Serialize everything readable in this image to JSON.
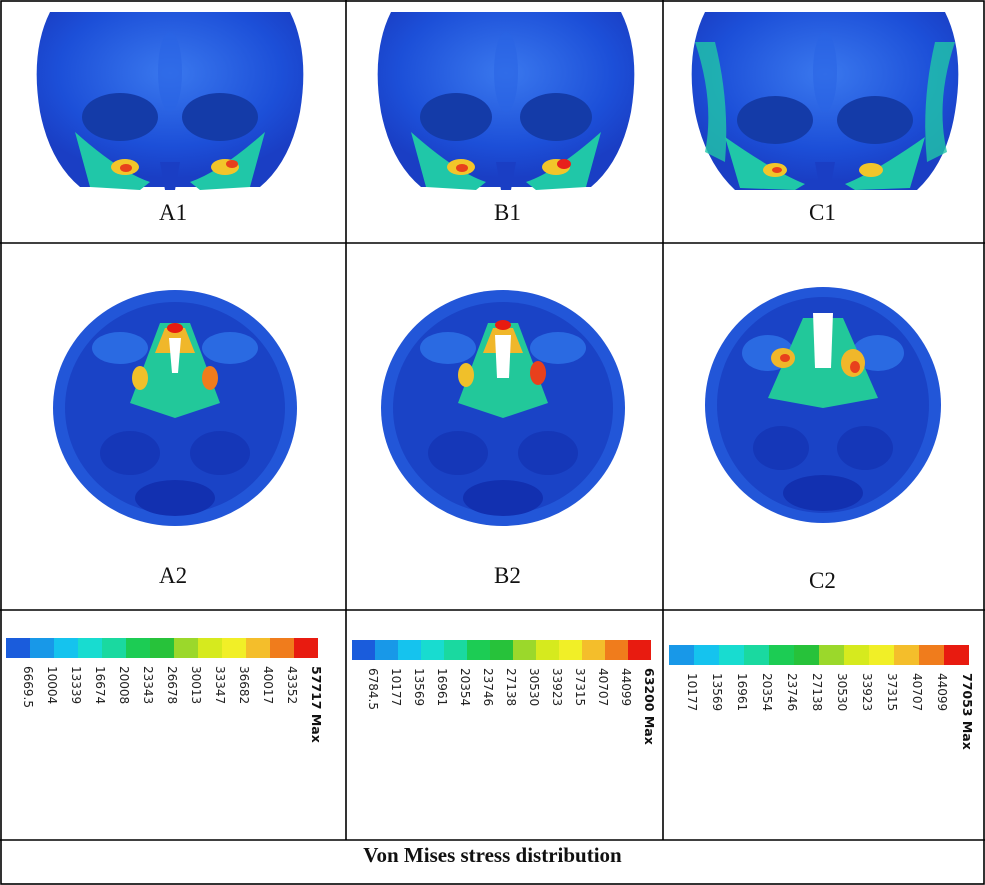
{
  "panels": [
    {
      "id": "A1",
      "label": "A1"
    },
    {
      "id": "B1",
      "label": "B1"
    },
    {
      "id": "C1",
      "label": "C1"
    },
    {
      "id": "A2",
      "label": "A2"
    },
    {
      "id": "B2",
      "label": "B2"
    },
    {
      "id": "C2",
      "label": "C2"
    }
  ],
  "legends": [
    {
      "ticks": [
        "6669.5",
        "10004",
        "13339",
        "16674",
        "20008",
        "23343",
        "26678",
        "30013",
        "33347",
        "36682",
        "40017",
        "43352"
      ],
      "max": "57717 Max"
    },
    {
      "ticks": [
        "6784.5",
        "10177",
        "13569",
        "16961",
        "20354",
        "23746",
        "27138",
        "30530",
        "33923",
        "37315",
        "40707",
        "44099"
      ],
      "max": "63200 Max"
    },
    {
      "ticks": [
        "10177",
        "13569",
        "16961",
        "20354",
        "23746",
        "27138",
        "30530",
        "33923",
        "37315",
        "40707",
        "44099"
      ],
      "max": "77053 Max"
    }
  ],
  "colors": {
    "scale": [
      "#1a5cdc",
      "#1898e8",
      "#15c3ee",
      "#18dcd0",
      "#1ad9a0",
      "#1ccc54",
      "#27c23a",
      "#9bd82b",
      "#d6ea1e",
      "#f1ef27",
      "#f4be2b",
      "#f07c1c",
      "#e81b10"
    ]
  },
  "caption": "Von Mises stress distribution"
}
